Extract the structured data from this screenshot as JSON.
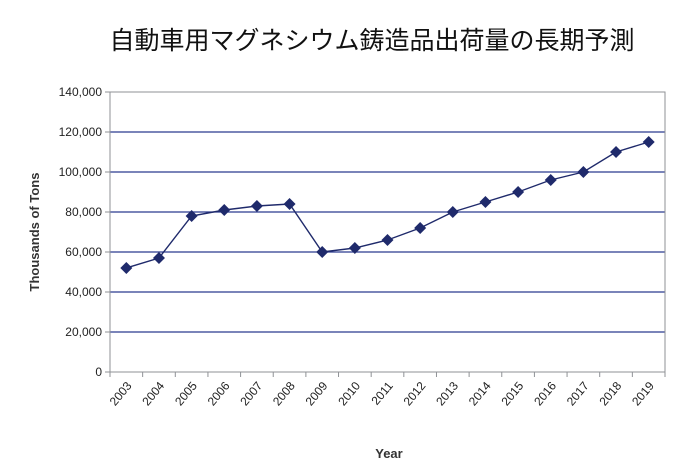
{
  "chart_data": {
    "type": "line",
    "title": "自動車用マグネシウム鋳造品出荷量の長期予測",
    "xlabel": "Year",
    "ylabel": "Thousands of Tons",
    "ylim": [
      0,
      140000
    ],
    "yticks": [
      "0",
      "20,000",
      "40,000",
      "60,000",
      "80,000",
      "100,000",
      "120,000",
      "140,000"
    ],
    "grid": true,
    "legend": "none",
    "categories": [
      "2003",
      "2004",
      "2005",
      "2006",
      "2007",
      "2008",
      "2009",
      "2010",
      "2011",
      "2012",
      "2013",
      "2014",
      "2015",
      "2016",
      "2017",
      "2018",
      "2019"
    ],
    "series": [
      {
        "values": [
          52000,
          57000,
          78000,
          81000,
          83000,
          84000,
          60000,
          62000,
          66000,
          72000,
          80000,
          85000,
          90000,
          96000,
          100000,
          110000,
          115000
        ],
        "color": "#1f2a6b"
      }
    ],
    "colors": {
      "grid": "#2b3a8f",
      "line": "#1f2a6b",
      "marker": "#1f2a6b"
    }
  }
}
